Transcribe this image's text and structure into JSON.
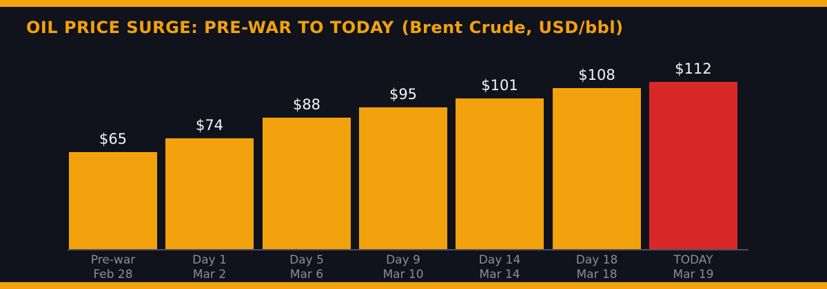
{
  "header": {
    "title": "OIL PRICE SURGE: PRE-WAR TO TODAY",
    "subtitle": "(Brent Crude, USD/bbl)"
  },
  "colors": {
    "background": "#10121C",
    "accent_orange": "#F2A20C",
    "highlight_red": "#D92828",
    "title_text": "#F2A20C",
    "value_label_text": "#F5F5F5",
    "tick_label_text": "#8D8D98",
    "axis_line": "#4E4E63"
  },
  "chart_data": {
    "type": "bar",
    "title": "OIL PRICE SURGE: PRE-WAR TO TODAY",
    "subtitle": "(Brent Crude, USD/bbl)",
    "unit": "USD/bbl",
    "series_name": "Brent Crude price",
    "categories": [
      "Pre-war",
      "Day 1",
      "Day 5",
      "Day 9",
      "Day 14",
      "Day 18",
      "TODAY"
    ],
    "category_dates": [
      "Feb 28",
      "Mar 2",
      "Mar 6",
      "Mar 10",
      "Mar 14",
      "Mar 18",
      "Mar 19"
    ],
    "values": [
      65,
      74,
      88,
      95,
      101,
      108,
      112
    ],
    "value_labels": [
      "$65",
      "$74",
      "$88",
      "$95",
      "$101",
      "$108",
      "$112"
    ],
    "value_prefix": "$",
    "bar_colors": [
      "orange",
      "orange",
      "orange",
      "orange",
      "orange",
      "orange",
      "red"
    ],
    "highlight_index": 6,
    "ylim": [
      0,
      120
    ],
    "grid": false,
    "legend": false,
    "xlabel": "",
    "ylabel": ""
  }
}
